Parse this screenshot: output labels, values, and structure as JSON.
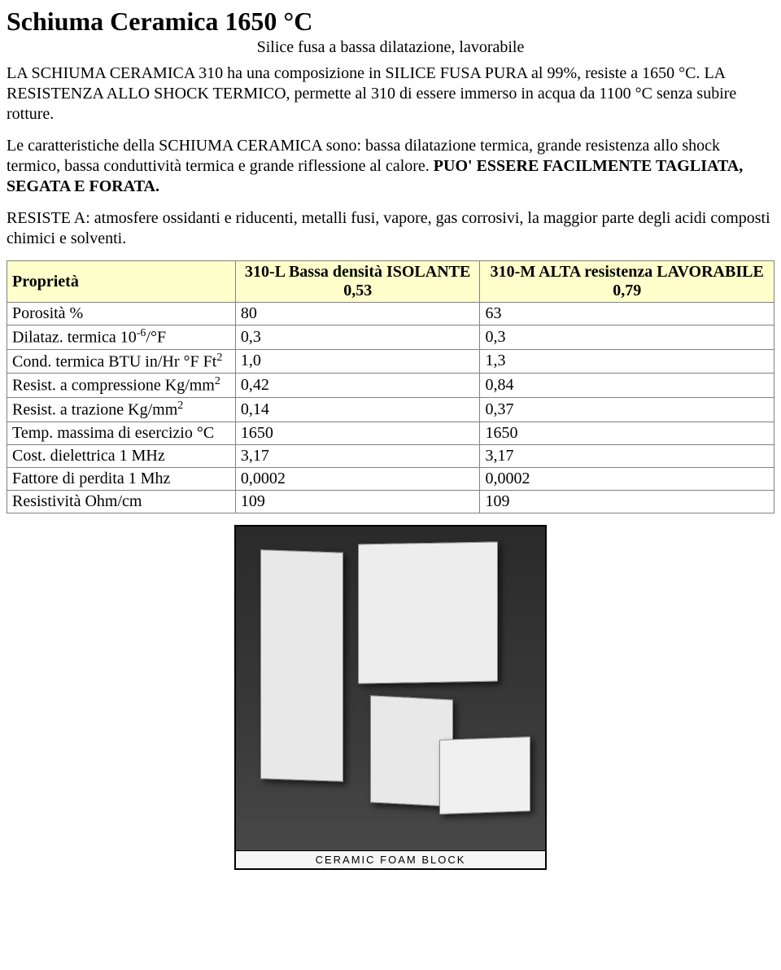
{
  "title": "Schiuma Ceramica 1650 °C",
  "subtitle": "Silice fusa a bassa dilatazione, lavorabile",
  "para1": "LA SCHIUMA CERAMICA 310 ha una composizione in SILICE FUSA PURA al 99%, resiste a 1650 °C. LA RESISTENZA ALLO SHOCK TERMICO, permette al 310 di essere immerso in acqua da 1100 °C senza subire rotture.",
  "para2_pre": "Le caratteristiche della SCHIUMA CERAMICA sono: bassa dilatazione termica, grande resistenza allo shock termico, bassa conduttività termica e grande riflessione al calore. ",
  "para2_bold": "PUO' ESSERE FACILMENTE TAGLIATA, SEGATA E FORATA.",
  "para3": "RESISTE A: atmosfere ossidanti e riducenti, metalli fusi, vapore, gas corrosivi, la maggior parte degli acidi composti chimici e solventi.",
  "table": {
    "header_bg": "#ffffcc",
    "border_color": "#808080",
    "headers": {
      "col0": "Proprietà",
      "col1_l1": "310-L Bassa densità ISOLANTE",
      "col1_l2": "0,53",
      "col2_l1": "310-M ALTA resistenza LAVORABILE",
      "col2_l2": "0,79"
    },
    "rows": [
      {
        "label_html": "Porosità %",
        "c1": "80",
        "c2": "63"
      },
      {
        "label_html": "Dilataz. termica 10<sup>-6</sup>/°F",
        "c1": "0,3",
        "c2": "0,3"
      },
      {
        "label_html": "Cond. termica BTU in/Hr °F Ft<sup>2</sup>",
        "c1": "1,0",
        "c2": "1,3"
      },
      {
        "label_html": "Resist. a compressione Kg/mm<sup>2</sup>",
        "c1": "0,42",
        "c2": "0,84"
      },
      {
        "label_html": "Resist. a trazione Kg/mm<sup>2</sup>",
        "c1": "0,14",
        "c2": "0,37"
      },
      {
        "label_html": "Temp. massima di esercizio °C",
        "c1": "1650",
        "c2": "1650"
      },
      {
        "label_html": "Cost. dielettrica 1 MHz",
        "c1": "3,17",
        "c2": "3,17"
      },
      {
        "label_html": "Fattore di perdita 1 Mhz",
        "c1": "0,0002",
        "c2": "0,0002"
      },
      {
        "label_html": "Resistività Ohm/cm",
        "c1": "109",
        "c2": "109"
      }
    ]
  },
  "image_caption": "CERAMIC FOAM BLOCK"
}
